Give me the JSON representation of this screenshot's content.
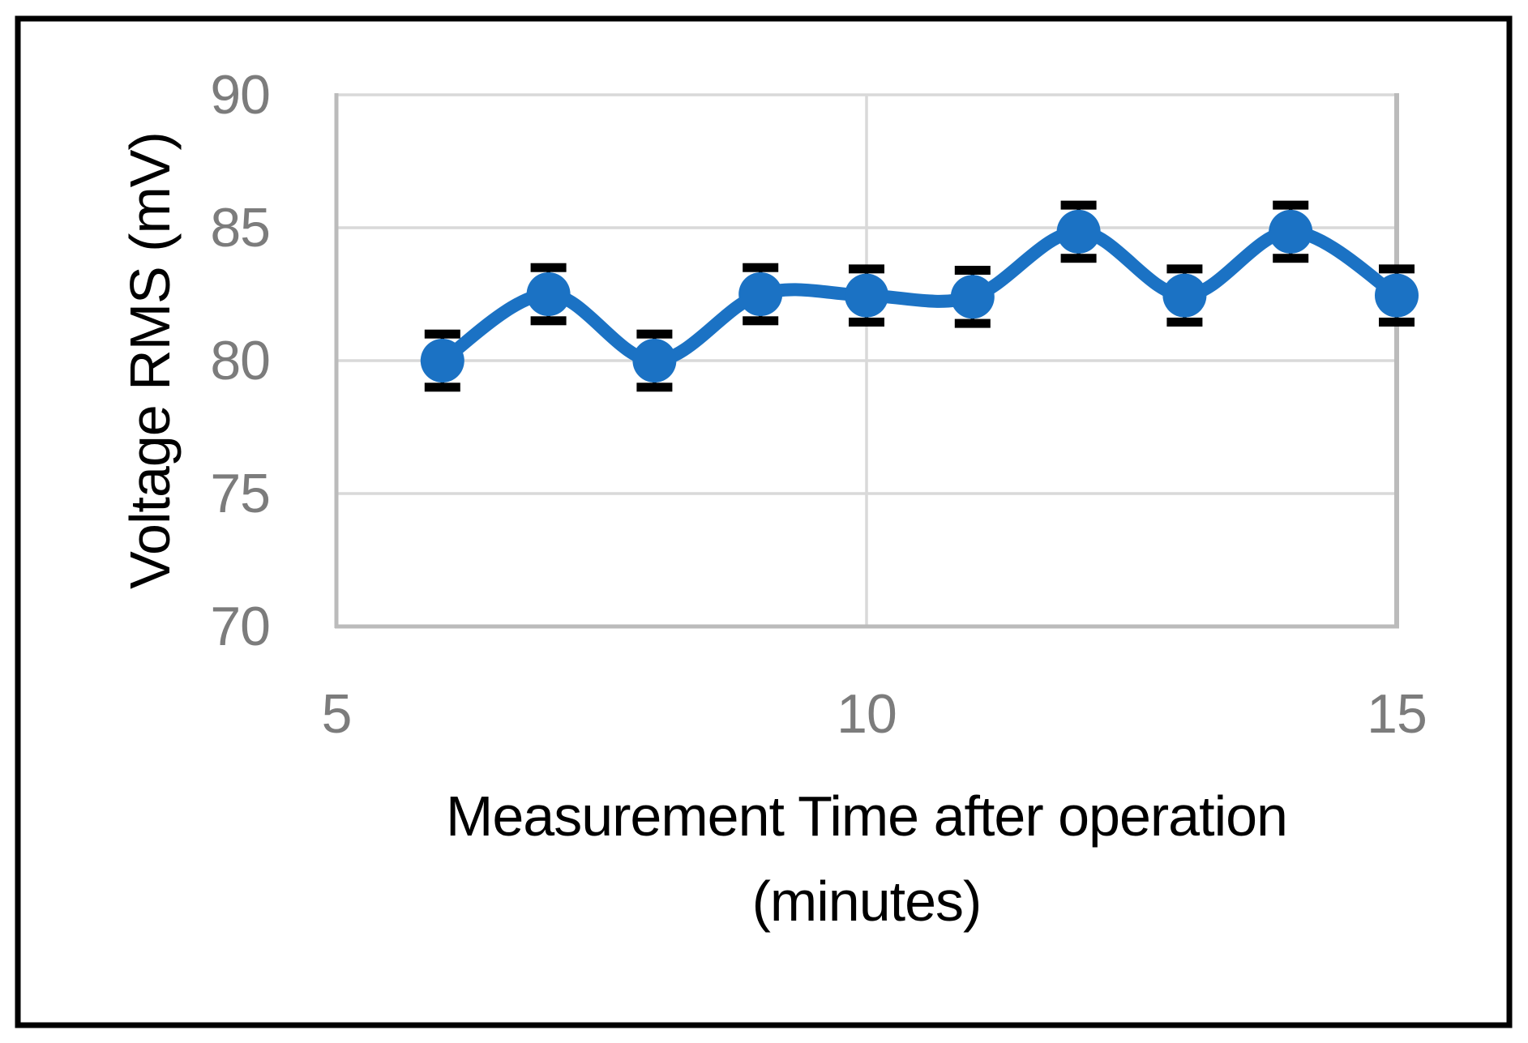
{
  "figure": {
    "background_color": "#FFFFFF",
    "outer_border_color": "#000000"
  },
  "chart_data": {
    "type": "line",
    "title": "",
    "xlabel_line1": "Measurement Time after operation",
    "xlabel_line2": "(minutes)",
    "ylabel": "Voltage RMS (mV)",
    "series": [
      {
        "name": "Voltage RMS",
        "x": [
          6,
          7,
          8,
          9,
          10,
          11,
          12,
          13,
          14,
          15
        ],
        "y": [
          80.0,
          82.5,
          80.0,
          82.5,
          82.45,
          82.4,
          84.85,
          82.45,
          84.85,
          82.45
        ],
        "y_error": 1.0,
        "marker": "circle",
        "smoothed": true
      }
    ],
    "xlim": [
      5,
      15
    ],
    "ylim": [
      70,
      90
    ],
    "xticks": [
      5,
      10,
      15
    ],
    "yticks": [
      70,
      75,
      80,
      85,
      90
    ],
    "grid": true,
    "legend_position": "none",
    "colors": {
      "series": "#1B72C4",
      "error_bar": "#000000",
      "gridline": "#D9D9D9",
      "axis_line": "#BBBBBB",
      "tick_label": "#7C7C7C",
      "axis_title": "#000000"
    }
  }
}
